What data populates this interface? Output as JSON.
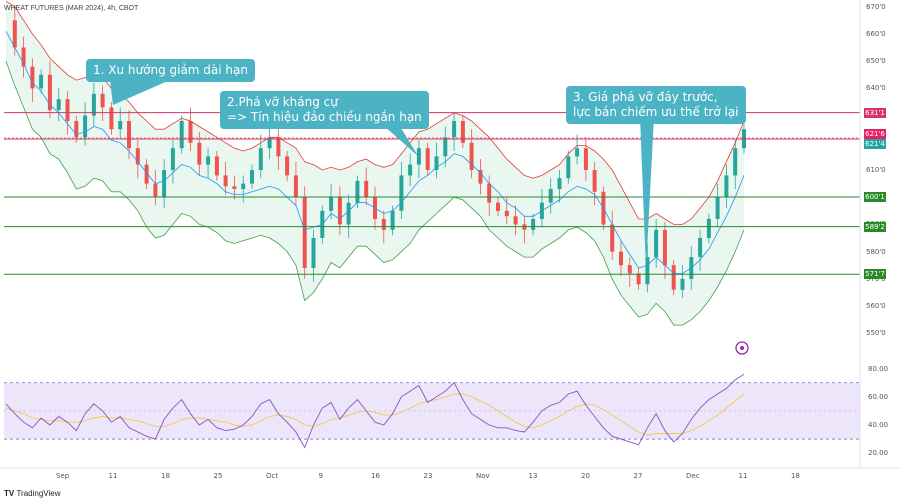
{
  "header": {
    "symbol_line": "WHEAT FUTURES (MAR 2024), 4h, CBOT"
  },
  "branding": {
    "logo_mark": "TV",
    "name": "TradingView"
  },
  "annotations": [
    {
      "id": "a1",
      "text": "1. Xu hướng giảm dài hạn"
    },
    {
      "id": "a2",
      "text": "2.Phá vỡ kháng cự\n=> Tín hiệu đảo chiều ngắn hạn"
    },
    {
      "id": "a3",
      "text": "3. Giá phá vỡ đáy trước,\nlực bán chiếm ưu thế trở lại"
    }
  ],
  "chart_data": {
    "type": "line",
    "title": "WHEAT FUTURES (MAR 2024), 4h, CBOT",
    "price_axis": {
      "ticks": [
        "670'0",
        "660'0",
        "650'0",
        "640'0",
        "630'0",
        "620'0",
        "610'0",
        "600'0",
        "590'0",
        "580'0",
        "570'0",
        "560'0",
        "550'0"
      ],
      "ylim": [
        549,
        671
      ]
    },
    "rsi_axis": {
      "ticks": [
        "80.00",
        "60.00",
        "40.00",
        "20.00"
      ],
      "ylim": [
        18,
        84
      ],
      "band_upper": 70,
      "band_lower": 30
    },
    "x_ticks": [
      "Sep",
      "11",
      "18",
      "25",
      "Oct",
      "9",
      "16",
      "23",
      "Nov",
      "13",
      "20",
      "27",
      "Dec",
      "11",
      "18"
    ],
    "horizontal_levels": [
      {
        "label": "631'1",
        "value": 631.1,
        "color": "#d6336c"
      },
      {
        "label": "621'4",
        "value": 621.4,
        "color": "#d6336c"
      },
      {
        "label": "600'1",
        "value": 600.1,
        "color": "#2a8a2a"
      },
      {
        "label": "589'2",
        "value": 589.2,
        "color": "#2a8a2a"
      },
      {
        "label": "571'7",
        "value": 571.7,
        "color": "#2a8a2a"
      }
    ],
    "price_labels": [
      {
        "label": "621'6",
        "color": "#e91e63"
      },
      {
        "label": "621'4",
        "color": "#26a69a"
      }
    ],
    "series": [
      {
        "name": "Close",
        "values": [
          665,
          655,
          648,
          640,
          645,
          632,
          636,
          628,
          622,
          630,
          638,
          633,
          625,
          628,
          618,
          612,
          605,
          600,
          610,
          618,
          628,
          620,
          612,
          615,
          608,
          604,
          603,
          605,
          610,
          618,
          622,
          615,
          608,
          600,
          574,
          585,
          595,
          600,
          590,
          598,
          606,
          600,
          592,
          588,
          595,
          608,
          612,
          618,
          610,
          615,
          622,
          628,
          620,
          610,
          605,
          598,
          595,
          593,
          590,
          588,
          592,
          598,
          603,
          607,
          615,
          618,
          610,
          602,
          590,
          580,
          575,
          572,
          568,
          578,
          588,
          575,
          566,
          570,
          578,
          585,
          592,
          600,
          608,
          618,
          625
        ]
      },
      {
        "name": "BB Upper",
        "values": [
          672,
          670,
          665,
          660,
          656,
          651,
          648,
          645,
          643,
          644,
          645,
          644,
          640,
          638,
          635,
          631,
          628,
          625,
          625,
          627,
          629,
          628,
          626,
          624,
          622,
          620,
          618,
          617,
          618,
          620,
          622,
          622,
          620,
          618,
          613,
          612,
          610,
          611,
          610,
          611,
          613,
          614,
          612,
          611,
          612,
          616,
          620,
          624,
          625,
          627,
          629,
          631,
          630,
          628,
          625,
          622,
          618,
          614,
          611,
          608,
          607,
          608,
          610,
          612,
          616,
          619,
          619,
          617,
          614,
          610,
          604,
          598,
          592,
          592,
          594,
          592,
          590,
          590,
          592,
          596,
          600,
          606,
          613,
          620,
          628
        ]
      },
      {
        "name": "BB Lower",
        "values": [
          650,
          641,
          633,
          625,
          622,
          616,
          614,
          609,
          603,
          604,
          607,
          606,
          602,
          602,
          599,
          595,
          589,
          585,
          586,
          590,
          594,
          593,
          590,
          589,
          587,
          584,
          583,
          584,
          585,
          586,
          585,
          583,
          580,
          575,
          562,
          565,
          570,
          576,
          574,
          578,
          582,
          582,
          579,
          576,
          577,
          580,
          583,
          588,
          591,
          594,
          597,
          600,
          599,
          596,
          593,
          588,
          585,
          582,
          580,
          578,
          578,
          581,
          583,
          585,
          588,
          589,
          587,
          584,
          578,
          570,
          564,
          560,
          556,
          557,
          561,
          558,
          553,
          553,
          555,
          558,
          562,
          567,
          573,
          580,
          588
        ]
      },
      {
        "name": "BB Basis",
        "values": [
          661,
          655,
          649,
          642,
          639,
          634,
          631,
          627,
          623,
          624,
          626,
          625,
          621,
          620,
          617,
          613,
          609,
          605,
          606,
          609,
          612,
          611,
          608,
          607,
          605,
          602,
          601,
          601,
          602,
          603,
          604,
          603,
          600,
          597,
          588,
          589,
          590,
          594,
          592,
          595,
          598,
          598,
          596,
          594,
          595,
          598,
          602,
          606,
          608,
          611,
          613,
          616,
          615,
          612,
          609,
          605,
          602,
          598,
          596,
          593,
          593,
          595,
          597,
          599,
          602,
          604,
          603,
          601,
          596,
          590,
          584,
          579,
          574,
          575,
          578,
          575,
          572,
          572,
          574,
          577,
          581,
          587,
          593,
          600,
          608
        ]
      },
      {
        "name": "RSI",
        "values": [
          55,
          48,
          42,
          38,
          45,
          40,
          46,
          42,
          36,
          48,
          55,
          50,
          42,
          46,
          38,
          35,
          32,
          30,
          44,
          52,
          58,
          48,
          40,
          44,
          38,
          36,
          37,
          40,
          46,
          55,
          58,
          48,
          42,
          35,
          24,
          40,
          52,
          56,
          44,
          52,
          58,
          50,
          42,
          40,
          48,
          60,
          64,
          68,
          56,
          60,
          64,
          70,
          58,
          48,
          44,
          40,
          38,
          38,
          36,
          35,
          42,
          50,
          54,
          56,
          62,
          64,
          54,
          46,
          38,
          32,
          30,
          28,
          26,
          38,
          48,
          36,
          28,
          34,
          44,
          52,
          58,
          62,
          66,
          72,
          76
        ]
      },
      {
        "name": "RSI MA",
        "values": [
          52,
          50,
          48,
          45,
          44,
          43,
          43,
          42,
          42,
          43,
          45,
          46,
          45,
          45,
          44,
          43,
          41,
          39,
          39,
          41,
          44,
          45,
          45,
          44,
          43,
          42,
          40,
          39,
          40,
          43,
          46,
          47,
          46,
          44,
          40,
          39,
          41,
          44,
          45,
          47,
          49,
          50,
          49,
          47,
          47,
          49,
          52,
          55,
          57,
          58,
          60,
          62,
          62,
          60,
          57,
          54,
          50,
          46,
          42,
          39,
          38,
          40,
          43,
          46,
          50,
          53,
          55,
          54,
          51,
          47,
          43,
          39,
          35,
          33,
          34,
          34,
          34,
          34,
          36,
          39,
          43,
          47,
          52,
          57,
          62
        ]
      }
    ]
  }
}
